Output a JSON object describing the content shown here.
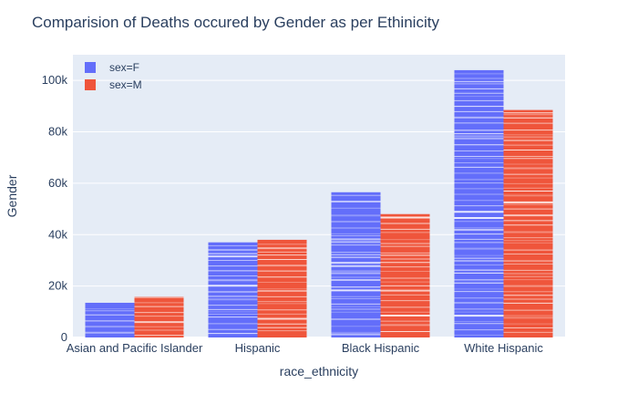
{
  "chart_data": {
    "type": "bar",
    "title": "Comparision of Deaths occured by Gender as per Ethinicity",
    "xlabel": "race_ethnicity",
    "ylabel": "Gender",
    "categories": [
      "Asian and Pacific Islander",
      "Hispanic",
      "Black Hispanic",
      "White Hispanic"
    ],
    "series": [
      {
        "name": "sex=F",
        "color": "#636efa",
        "values": [
          13500,
          37000,
          56500,
          104000
        ]
      },
      {
        "name": "sex=M",
        "color": "#ef553b",
        "values": [
          15800,
          38000,
          48000,
          88500
        ]
      }
    ],
    "ylim": [
      0,
      110000
    ],
    "yticks": [
      0,
      20000,
      40000,
      60000,
      80000,
      100000
    ],
    "ytick_labels": [
      "0",
      "20k",
      "40k",
      "60k",
      "80k",
      "100k"
    ],
    "grid": true,
    "legend_position": "top-left",
    "plot_background": "#e5ecf6",
    "bars_stacked_segments": true
  }
}
